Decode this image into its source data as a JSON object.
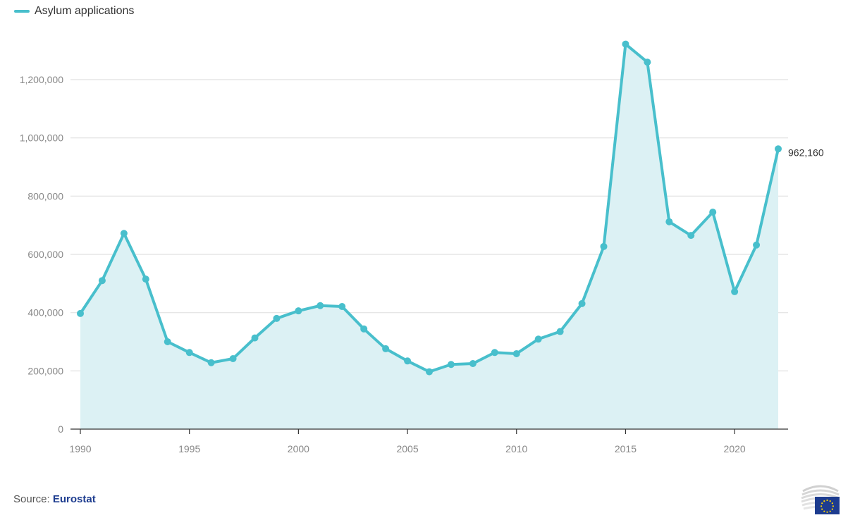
{
  "colors": {
    "line": "#48bfcc",
    "fill": "#dcf1f4",
    "grid": "#e6e6e6",
    "axis": "#333333",
    "source_link": "#1d3c8f"
  },
  "legend": {
    "label": "Asylum applications"
  },
  "source": {
    "prefix": "Source:",
    "name": "Eurostat"
  },
  "chart_data": {
    "type": "area",
    "x": [
      1990,
      1991,
      1992,
      1993,
      1994,
      1995,
      1996,
      1997,
      1998,
      1999,
      2000,
      2001,
      2002,
      2003,
      2004,
      2005,
      2006,
      2007,
      2008,
      2009,
      2010,
      2011,
      2012,
      2013,
      2014,
      2015,
      2016,
      2017,
      2018,
      2019,
      2020,
      2021,
      2022
    ],
    "series": [
      {
        "name": "Asylum applications",
        "values": [
          397000,
          510000,
          672000,
          515000,
          300000,
          263000,
          228000,
          242000,
          313000,
          380000,
          406000,
          424000,
          421000,
          344000,
          276000,
          234000,
          197000,
          222000,
          225000,
          263000,
          259000,
          309000,
          335000,
          431000,
          627000,
          1322000,
          1260000,
          712000,
          665000,
          745000,
          472000,
          632000,
          962160
        ]
      }
    ],
    "end_label": "962,160",
    "ylim": [
      0,
      1350000
    ],
    "xlim": [
      1990,
      2022
    ],
    "yticks": [
      0,
      200000,
      400000,
      600000,
      800000,
      1000000,
      1200000
    ],
    "ytick_labels": [
      "0",
      "200,000",
      "400,000",
      "600,000",
      "800,000",
      "1,000,000",
      "1,200,000"
    ],
    "xticks": [
      1990,
      1995,
      2000,
      2005,
      2010,
      2015,
      2020
    ],
    "xtick_labels": [
      "1990",
      "1995",
      "2000",
      "2005",
      "2010",
      "2015",
      "2020"
    ],
    "grid": true,
    "legend_position": "top-left",
    "title": "",
    "xlabel": "",
    "ylabel": ""
  }
}
